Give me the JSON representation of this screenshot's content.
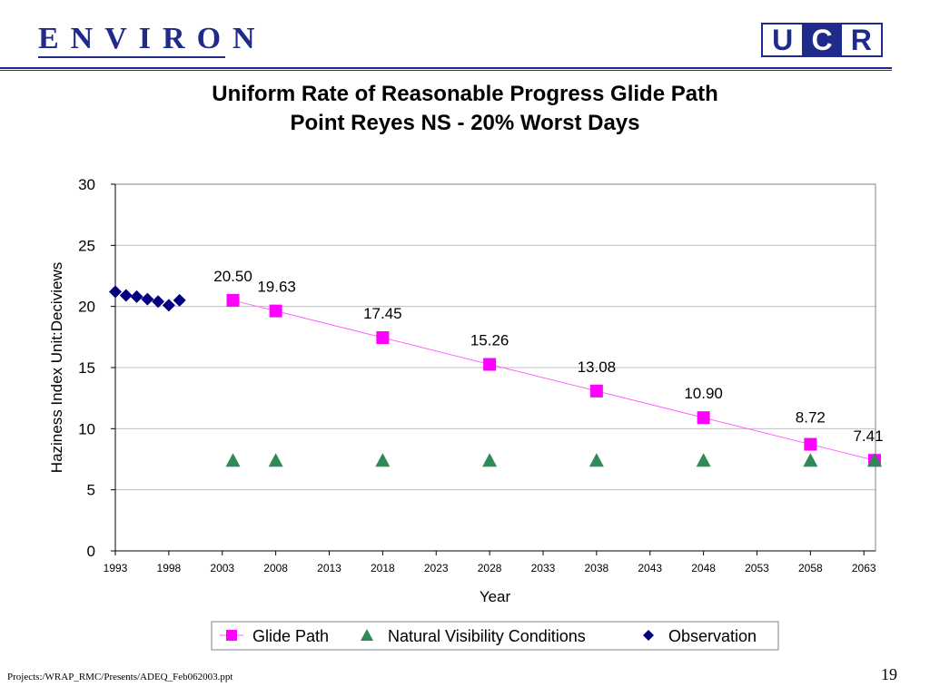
{
  "header": {
    "logo_left_text": "ENVIRON",
    "logo_right_letters": [
      "U",
      "C",
      "R"
    ],
    "brand_color": "#1f2a8a",
    "logo_right_colors": [
      "#1f2a8a",
      "#1f2a8a",
      "#1f2a8a"
    ]
  },
  "footer": {
    "path": "Projects:/WRAP_RMC/Presents/ADEQ_Feb062003.ppt",
    "page_number": "19"
  },
  "chart_data": {
    "type": "line",
    "title_line1": "Uniform Rate of Reasonable Progress Glide Path",
    "title_line2": "Point Reyes NS - 20% Worst Days",
    "xlabel": "Year",
    "ylabel": "Haziness Index Unit:Deciviews",
    "xlim": [
      1993,
      2065
    ],
    "ylim": [
      0,
      30
    ],
    "x_ticks": [
      1993,
      1998,
      2003,
      2008,
      2013,
      2018,
      2023,
      2028,
      2033,
      2038,
      2043,
      2048,
      2053,
      2058,
      2063
    ],
    "y_ticks": [
      0,
      5,
      10,
      15,
      20,
      25,
      30
    ],
    "grid": "horizontal",
    "legend_position": "bottom",
    "series": [
      {
        "name": "Glide Path",
        "marker": "square",
        "color": "#ff00ff",
        "points": [
          [
            2004,
            20.5
          ],
          [
            2008,
            19.63
          ],
          [
            2018,
            17.45
          ],
          [
            2028,
            15.26
          ],
          [
            2038,
            13.08
          ],
          [
            2048,
            10.9
          ],
          [
            2058,
            8.72
          ],
          [
            2064,
            7.41
          ]
        ],
        "labels": [
          "20.50",
          "19.63",
          "17.45",
          "15.26",
          "13.08",
          "10.90",
          "8.72",
          "7.41"
        ]
      },
      {
        "name": "Natural Visibility Conditions",
        "marker": "triangle",
        "color": "#2e8b57",
        "points": [
          [
            2004,
            7.41
          ],
          [
            2008,
            7.41
          ],
          [
            2018,
            7.41
          ],
          [
            2028,
            7.41
          ],
          [
            2038,
            7.41
          ],
          [
            2048,
            7.41
          ],
          [
            2058,
            7.41
          ],
          [
            2064,
            7.41
          ]
        ]
      },
      {
        "name": "Observation",
        "marker": "diamond",
        "color": "#000080",
        "points": [
          [
            1993,
            21.2
          ],
          [
            1994,
            20.9
          ],
          [
            1995,
            20.8
          ],
          [
            1996,
            20.6
          ],
          [
            1997,
            20.4
          ],
          [
            1998,
            20.1
          ],
          [
            1999,
            20.5
          ]
        ]
      }
    ]
  }
}
